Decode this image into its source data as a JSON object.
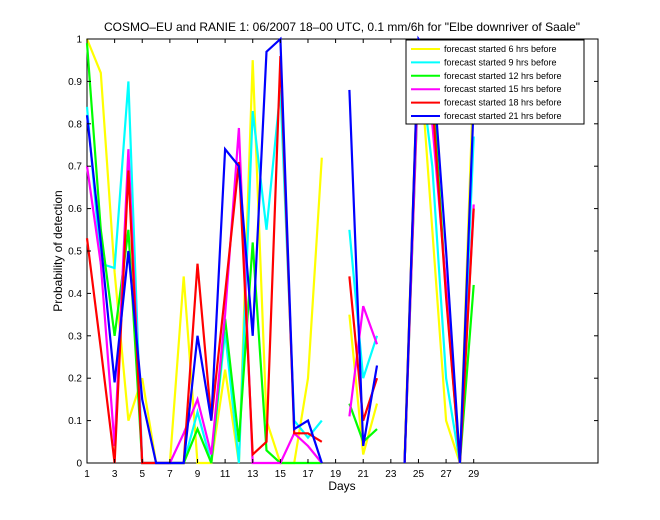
{
  "chart_data": {
    "type": "line",
    "title": "COSMO–EU and RANIE 1: 06/2007 18–00 UTC, 0.1 mm/6h for \"Elbe downriver of Saale\"",
    "xlabel": "Days",
    "ylabel": "Probability of detection",
    "xlim": [
      1,
      38
    ],
    "ylim": [
      0,
      1
    ],
    "xticks": [
      1,
      3,
      5,
      7,
      9,
      11,
      13,
      15,
      17,
      19,
      21,
      23,
      25,
      27,
      29
    ],
    "yticks": [
      0,
      0.1,
      0.2,
      0.3,
      0.4,
      0.5,
      0.6,
      0.7,
      0.8,
      0.9,
      1
    ],
    "legend_position": "top-right",
    "series": [
      {
        "name": "forecast started 6 hrs before",
        "color": "#ffff00",
        "points": [
          [
            1,
            1.0
          ],
          [
            2,
            0.92
          ],
          [
            3,
            0.45
          ],
          [
            4,
            0.1
          ],
          [
            5,
            0.2
          ],
          [
            6,
            0.0
          ],
          [
            7,
            0.0
          ],
          [
            8,
            0.44
          ],
          [
            9,
            0.0
          ],
          [
            10,
            0.0
          ],
          [
            11,
            0.22
          ],
          [
            12,
            0.0
          ],
          [
            13,
            0.95
          ],
          [
            14,
            0.1
          ],
          [
            15,
            0.0
          ],
          [
            16,
            0.0
          ],
          [
            17,
            0.2
          ],
          [
            18,
            0.72
          ],
          [
            null,
            null
          ],
          [
            20,
            0.35
          ],
          [
            21,
            0.02
          ],
          [
            22,
            0.14
          ],
          [
            null,
            null
          ],
          [
            24,
            0.02
          ],
          [
            25,
            1.0
          ],
          [
            26,
            0.55
          ],
          [
            27,
            0.1
          ],
          [
            28,
            0.0
          ],
          [
            29,
            0.92
          ]
        ]
      },
      {
        "name": "forecast started 9 hrs before",
        "color": "#00ffff",
        "points": [
          [
            1,
            0.84
          ],
          [
            2,
            0.47
          ],
          [
            3,
            0.46
          ],
          [
            4,
            0.9
          ],
          [
            5,
            0.0
          ],
          [
            6,
            0.0
          ],
          [
            7,
            0.0
          ],
          [
            8,
            0.0
          ],
          [
            9,
            0.12
          ],
          [
            10,
            0.0
          ],
          [
            11,
            0.31
          ],
          [
            12,
            0.0
          ],
          [
            13,
            0.83
          ],
          [
            14,
            0.55
          ],
          [
            15,
            0.88
          ],
          [
            16,
            0.1
          ],
          [
            17,
            0.06
          ],
          [
            18,
            0.1
          ],
          [
            null,
            null
          ],
          [
            20,
            0.55
          ],
          [
            21,
            0.2
          ],
          [
            22,
            0.3
          ],
          [
            null,
            null
          ],
          [
            24,
            0.0
          ],
          [
            25,
            0.97
          ],
          [
            26,
            0.7
          ],
          [
            27,
            0.2
          ],
          [
            28,
            0.0
          ],
          [
            29,
            0.77
          ]
        ]
      },
      {
        "name": "forecast started 12 hrs before",
        "color": "#00ff00",
        "points": [
          [
            1,
            0.99
          ],
          [
            2,
            0.55
          ],
          [
            3,
            0.3
          ],
          [
            4,
            0.55
          ],
          [
            5,
            0.0
          ],
          [
            6,
            0.0
          ],
          [
            7,
            0.0
          ],
          [
            8,
            0.0
          ],
          [
            9,
            0.08
          ],
          [
            10,
            0.0
          ],
          [
            11,
            0.34
          ],
          [
            12,
            0.05
          ],
          [
            13,
            0.52
          ],
          [
            14,
            0.03
          ],
          [
            15,
            0.0
          ],
          [
            16,
            0.0
          ],
          [
            17,
            0.0
          ],
          [
            18,
            0.0
          ],
          [
            null,
            null
          ],
          [
            20,
            0.14
          ],
          [
            21,
            0.05
          ],
          [
            22,
            0.08
          ],
          [
            null,
            null
          ],
          [
            24,
            0.0
          ],
          [
            25,
            0.92
          ],
          [
            26,
            0.9
          ],
          [
            27,
            0.4
          ],
          [
            28,
            0.0
          ],
          [
            29,
            0.42
          ]
        ]
      },
      {
        "name": "forecast started 15 hrs before",
        "color": "#ff00ff",
        "points": [
          [
            1,
            0.7
          ],
          [
            2,
            0.47
          ],
          [
            3,
            0.04
          ],
          [
            4,
            0.74
          ],
          [
            5,
            0.0
          ],
          [
            6,
            0.0
          ],
          [
            7,
            0.0
          ],
          [
            8,
            0.07
          ],
          [
            9,
            0.15
          ],
          [
            10,
            0.02
          ],
          [
            11,
            0.35
          ],
          [
            12,
            0.79
          ],
          [
            13,
            0.0
          ],
          [
            14,
            0.0
          ],
          [
            15,
            0.0
          ],
          [
            16,
            0.07
          ],
          [
            17,
            0.04
          ],
          [
            18,
            0.0
          ],
          [
            null,
            null
          ],
          [
            20,
            0.11
          ],
          [
            21,
            0.37
          ],
          [
            22,
            0.28
          ],
          [
            null,
            null
          ],
          [
            24,
            0.0
          ],
          [
            25,
            0.93
          ],
          [
            26,
            0.8
          ],
          [
            27,
            0.42
          ],
          [
            28,
            0.0
          ],
          [
            29,
            0.61
          ]
        ]
      },
      {
        "name": "forecast started 18 hrs before",
        "color": "#ff0000",
        "points": [
          [
            1,
            0.53
          ],
          [
            2,
            0.27
          ],
          [
            3,
            0.0
          ],
          [
            4,
            0.69
          ],
          [
            5,
            0.0
          ],
          [
            6,
            0.0
          ],
          [
            7,
            0.0
          ],
          [
            8,
            0.0
          ],
          [
            9,
            0.47
          ],
          [
            10,
            0.1
          ],
          [
            11,
            0.4
          ],
          [
            12,
            0.71
          ],
          [
            13,
            0.02
          ],
          [
            14,
            0.05
          ],
          [
            15,
            0.96
          ],
          [
            16,
            0.07
          ],
          [
            17,
            0.07
          ],
          [
            18,
            0.05
          ],
          [
            null,
            null
          ],
          [
            20,
            0.44
          ],
          [
            21,
            0.1
          ],
          [
            22,
            0.2
          ],
          [
            null,
            null
          ],
          [
            24,
            0.0
          ],
          [
            25,
            0.99
          ],
          [
            26,
            0.86
          ],
          [
            27,
            0.39
          ],
          [
            28,
            0.0
          ],
          [
            29,
            0.6
          ]
        ]
      },
      {
        "name": "forecast started 21 hrs before",
        "color": "#0000ff",
        "points": [
          [
            1,
            0.82
          ],
          [
            2,
            0.52
          ],
          [
            3,
            0.19
          ],
          [
            4,
            0.5
          ],
          [
            5,
            0.15
          ],
          [
            6,
            0.0
          ],
          [
            7,
            0.0
          ],
          [
            8,
            0.0
          ],
          [
            9,
            0.3
          ],
          [
            10,
            0.1
          ],
          [
            11,
            0.74
          ],
          [
            12,
            0.7
          ],
          [
            13,
            0.3
          ],
          [
            14,
            0.97
          ],
          [
            15,
            1.0
          ],
          [
            16,
            0.08
          ],
          [
            17,
            0.1
          ],
          [
            18,
            0.0
          ],
          [
            null,
            null
          ],
          [
            20,
            0.88
          ],
          [
            21,
            0.04
          ],
          [
            22,
            0.23
          ],
          [
            null,
            null
          ],
          [
            24,
            0.0
          ],
          [
            25,
            1.0
          ],
          [
            26,
            0.95
          ],
          [
            27,
            0.5
          ],
          [
            28,
            0.0
          ],
          [
            29,
            0.85
          ]
        ]
      }
    ]
  }
}
